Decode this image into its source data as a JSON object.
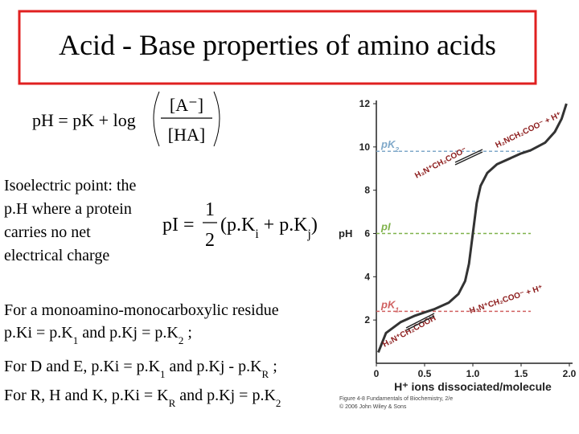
{
  "title": "Acid - Base properties of amino acids",
  "formula_ph": {
    "lhs": "pH = pK + log",
    "num": "[A⁻]",
    "den": "[HA]"
  },
  "isoelectric": [
    "Isoelectric point: the",
    "p.H where a protein",
    "carries no net",
    "electrical charge"
  ],
  "formula_pi": {
    "lhs": "pI =",
    "num": "1",
    "den": "2",
    "terms": [
      "(p.K",
      "i",
      " + p.K",
      "j",
      ")"
    ]
  },
  "lines": [
    [
      "For a monoamino-monocarboxylic residue"
    ],
    [
      "p.Ki = p.K",
      "1",
      " and p.Kj = p.K",
      "2",
      " ;"
    ],
    [
      "For D and E, p.Ki = p.K",
      "1",
      " and p.Kj - p.K",
      "R",
      " ;"
    ],
    [
      "For R, H and K, p.Ki = K",
      "R",
      " and p.Kj = p.K",
      "2"
    ]
  ],
  "chart_data": {
    "type": "line",
    "xlabel": "H⁺ ions dissociated/molecule",
    "ylabel": "pH",
    "x": [
      0.02,
      0.1,
      0.25,
      0.4,
      0.5,
      0.6,
      0.75,
      0.85,
      0.92,
      0.96,
      1.0,
      1.04,
      1.08,
      1.15,
      1.25,
      1.4,
      1.5,
      1.6,
      1.75,
      1.85,
      1.92,
      1.97
    ],
    "series": [
      {
        "color": "#333333",
        "values": [
          0.5,
          1.4,
          1.9,
          2.2,
          2.35,
          2.5,
          2.8,
          3.2,
          3.8,
          4.6,
          6.0,
          7.4,
          8.2,
          8.8,
          9.2,
          9.5,
          9.7,
          9.85,
          10.2,
          10.7,
          11.3,
          12.0
        ]
      }
    ],
    "xlim": [
      0,
      2.0
    ],
    "ylim": [
      0,
      12
    ],
    "xticks": [
      0,
      0.5,
      {
        "value": 1.0,
        "label": "1.0"
      },
      1.5,
      {
        "value": 2.0,
        "label": "2.0"
      }
    ],
    "yticks": [
      2,
      4,
      6,
      8,
      10,
      12
    ],
    "reference_lines": [
      {
        "label": [
          "pK",
          "2"
        ],
        "value": 9.8,
        "color": "#7fa8c9"
      },
      {
        "label": [
          "pI"
        ],
        "value": 6.0,
        "color": "#7fb24a"
      },
      {
        "label": [
          "pK",
          "1"
        ],
        "value": 2.4,
        "color": "#d06060"
      }
    ],
    "species": [
      "H₃N⁺CH₂COOH",
      "H₃N⁺CH₂COO⁻ + H⁺",
      "H₃N⁺CH₂COO⁻",
      "H₂NCH₂COO⁻ + H⁺"
    ],
    "caption": [
      "Figure 4-8 Fundamentals of Biochemistry, 2/e",
      "© 2006 John Wiley & Sons"
    ]
  }
}
